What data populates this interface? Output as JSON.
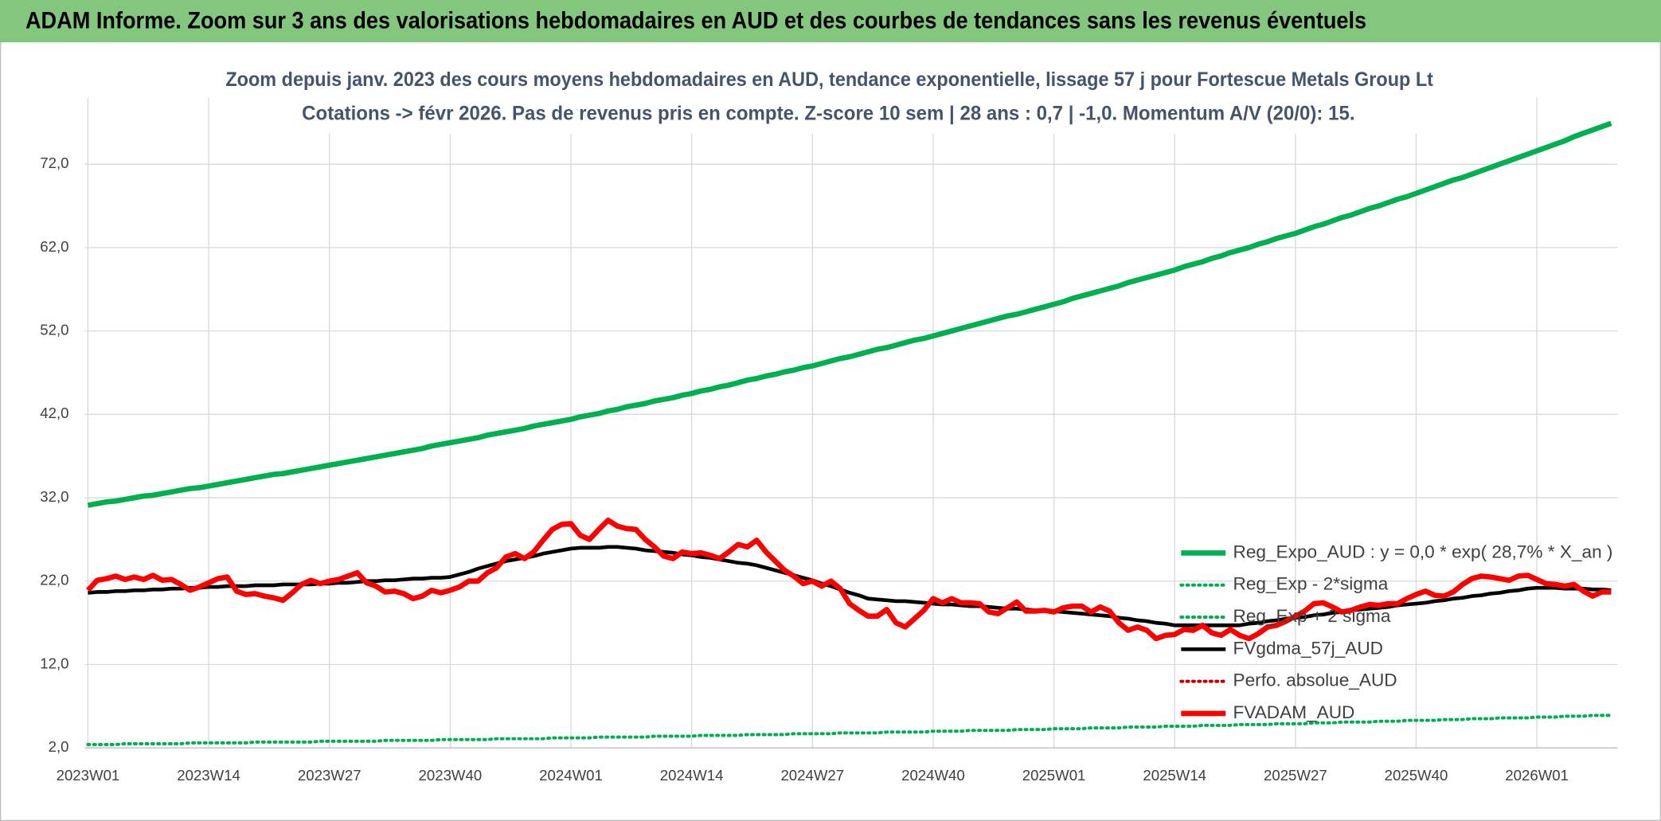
{
  "header": {
    "title": "ADAM Informe. Zoom sur 3 ans des valorisations hebdomadaires en AUD et des courbes de tendances sans les revenus éventuels"
  },
  "chart_data": {
    "type": "line",
    "title": "Zoom depuis janv. 2023 des cours moyens hebdomadaires en AUD, tendance exponentielle, lissage 57 j pour Fortescue Metals Group Lt",
    "subtitle": "Cotations -> févr 2026. Pas de revenus pris en compte. Z-score 10 sem | 28 ans : 0,7 | -1,0. Momentum A/V (20/0): 15.",
    "categories": [
      "2023W01",
      null,
      null,
      null,
      null,
      null,
      null,
      null,
      null,
      null,
      null,
      null,
      null,
      "2023W14",
      null,
      null,
      null,
      null,
      null,
      null,
      null,
      null,
      null,
      null,
      null,
      null,
      "2023W27",
      null,
      null,
      null,
      null,
      null,
      null,
      null,
      null,
      null,
      null,
      null,
      null,
      "2023W40",
      null,
      null,
      null,
      null,
      null,
      null,
      null,
      null,
      null,
      null,
      null,
      null,
      "2024W01",
      null,
      null,
      null,
      null,
      null,
      null,
      null,
      null,
      null,
      null,
      null,
      null,
      "2024W14",
      null,
      null,
      null,
      null,
      null,
      null,
      null,
      null,
      null,
      null,
      null,
      null,
      "2024W27",
      null,
      null,
      null,
      null,
      null,
      null,
      null,
      null,
      null,
      null,
      null,
      null,
      "2024W40",
      null,
      null,
      null,
      null,
      null,
      null,
      null,
      null,
      null,
      null,
      null,
      null,
      "2025W01",
      null,
      null,
      null,
      null,
      null,
      null,
      null,
      null,
      null,
      null,
      null,
      null,
      "2025W14",
      null,
      null,
      null,
      null,
      null,
      null,
      null,
      null,
      null,
      null,
      null,
      null,
      "2025W27",
      null,
      null,
      null,
      null,
      null,
      null,
      null,
      null,
      null,
      null,
      null,
      null,
      "2025W40",
      null,
      null,
      null,
      null,
      null,
      null,
      null,
      null,
      null,
      null,
      null,
      null,
      "2026W01",
      null,
      null,
      null,
      null,
      null,
      null,
      null,
      null
    ],
    "ylim": [
      2,
      80
    ],
    "yticks": [
      {
        "value": 2,
        "label": "2,0"
      },
      {
        "value": 12,
        "label": "12,0"
      },
      {
        "value": 22,
        "label": "22,0"
      },
      {
        "value": 32,
        "label": "32,0"
      },
      {
        "value": 42,
        "label": "42,0"
      },
      {
        "value": 52,
        "label": "52,0"
      },
      {
        "value": 62,
        "label": "62,0"
      },
      {
        "value": 72,
        "label": "72,0"
      }
    ],
    "grid": true,
    "legend": "lower right",
    "series": [
      {
        "name": "Reg_Expo_AUD : y = 0,0 * exp( 28,7% *  X_an )",
        "color": "#00b050",
        "style": "solid",
        "width": 5,
        "values": [
          31.1,
          31.3,
          31.5,
          31.6,
          31.8,
          32.0,
          32.2,
          32.3,
          32.5,
          32.7,
          32.9,
          33.1,
          33.2,
          33.4,
          33.6,
          33.8,
          34.0,
          34.2,
          34.4,
          34.6,
          34.8,
          34.9,
          35.1,
          35.3,
          35.5,
          35.7,
          35.9,
          36.1,
          36.3,
          36.5,
          36.7,
          36.9,
          37.1,
          37.3,
          37.5,
          37.7,
          37.9,
          38.2,
          38.4,
          38.6,
          38.8,
          39.0,
          39.2,
          39.5,
          39.7,
          39.9,
          40.1,
          40.3,
          40.6,
          40.8,
          41.0,
          41.2,
          41.4,
          41.7,
          41.9,
          42.1,
          42.4,
          42.6,
          42.9,
          43.1,
          43.3,
          43.6,
          43.8,
          44.0,
          44.3,
          44.5,
          44.8,
          45.0,
          45.3,
          45.5,
          45.8,
          46.1,
          46.3,
          46.6,
          46.8,
          47.1,
          47.3,
          47.6,
          47.8,
          48.1,
          48.4,
          48.7,
          48.9,
          49.2,
          49.5,
          49.8,
          50.0,
          50.3,
          50.6,
          50.9,
          51.1,
          51.4,
          51.7,
          52.0,
          52.3,
          52.6,
          52.9,
          53.2,
          53.5,
          53.8,
          54.0,
          54.3,
          54.6,
          54.9,
          55.2,
          55.5,
          55.9,
          56.2,
          56.5,
          56.8,
          57.1,
          57.4,
          57.8,
          58.1,
          58.4,
          58.7,
          59.0,
          59.3,
          59.7,
          60.0,
          60.3,
          60.7,
          61.0,
          61.4,
          61.7,
          62.0,
          62.4,
          62.7,
          63.1,
          63.4,
          63.7,
          64.1,
          64.5,
          64.8,
          65.2,
          65.6,
          65.9,
          66.3,
          66.7,
          67.0,
          67.4,
          67.8,
          68.1,
          68.5,
          68.9,
          69.3,
          69.7,
          70.1,
          70.4,
          70.8,
          71.2,
          71.6,
          72.0,
          72.4,
          72.8,
          73.2,
          73.6,
          74.0,
          74.4,
          74.8,
          75.3,
          75.7,
          76.1,
          76.5,
          76.9
        ]
      },
      {
        "name": "Reg_Exp - 2*sigma",
        "color": "#00b050",
        "style": "dotted",
        "width": 3,
        "values": [
          2.4,
          2.4,
          2.4,
          2.4,
          2.5,
          2.5,
          2.5,
          2.5,
          2.5,
          2.5,
          2.5,
          2.6,
          2.6,
          2.6,
          2.6,
          2.6,
          2.6,
          2.6,
          2.7,
          2.7,
          2.7,
          2.7,
          2.7,
          2.7,
          2.7,
          2.8,
          2.8,
          2.8,
          2.8,
          2.8,
          2.8,
          2.8,
          2.9,
          2.9,
          2.9,
          2.9,
          2.9,
          2.9,
          3.0,
          3.0,
          3.0,
          3.0,
          3.0,
          3.0,
          3.1,
          3.1,
          3.1,
          3.1,
          3.1,
          3.1,
          3.2,
          3.2,
          3.2,
          3.2,
          3.2,
          3.3,
          3.3,
          3.3,
          3.3,
          3.3,
          3.3,
          3.4,
          3.4,
          3.4,
          3.4,
          3.4,
          3.5,
          3.5,
          3.5,
          3.5,
          3.5,
          3.6,
          3.6,
          3.6,
          3.6,
          3.6,
          3.7,
          3.7,
          3.7,
          3.7,
          3.7,
          3.8,
          3.8,
          3.8,
          3.8,
          3.8,
          3.9,
          3.9,
          3.9,
          3.9,
          3.9,
          4.0,
          4.0,
          4.0,
          4.0,
          4.1,
          4.1,
          4.1,
          4.1,
          4.1,
          4.2,
          4.2,
          4.2,
          4.2,
          4.3,
          4.3,
          4.3,
          4.3,
          4.4,
          4.4,
          4.4,
          4.4,
          4.5,
          4.5,
          4.5,
          4.5,
          4.6,
          4.6,
          4.6,
          4.6,
          4.7,
          4.7,
          4.7,
          4.7,
          4.8,
          4.8,
          4.8,
          4.8,
          4.9,
          4.9,
          4.9,
          4.9,
          5.0,
          5.0,
          5.0,
          5.1,
          5.1,
          5.1,
          5.1,
          5.2,
          5.2,
          5.2,
          5.3,
          5.3,
          5.3,
          5.3,
          5.4,
          5.4,
          5.4,
          5.5,
          5.5,
          5.5,
          5.6,
          5.6,
          5.6,
          5.6,
          5.7,
          5.7,
          5.7,
          5.8,
          5.8,
          5.8,
          5.9,
          5.9,
          5.9
        ]
      },
      {
        "name": "Reg_Exp + 2 sigma",
        "color": "#00b050",
        "style": "dotted",
        "width": 3
      },
      {
        "name": "FVgdma_57j_AUD",
        "color": "#000000",
        "style": "solid",
        "width": 3.5,
        "values": [
          20.6,
          20.7,
          20.7,
          20.8,
          20.8,
          20.9,
          20.9,
          21.0,
          21.0,
          21.1,
          21.1,
          21.2,
          21.2,
          21.3,
          21.3,
          21.4,
          21.4,
          21.4,
          21.5,
          21.5,
          21.5,
          21.6,
          21.6,
          21.6,
          21.6,
          21.7,
          21.7,
          21.8,
          21.8,
          21.9,
          22.0,
          22.0,
          22.1,
          22.1,
          22.2,
          22.3,
          22.3,
          22.4,
          22.4,
          22.5,
          22.8,
          23.1,
          23.5,
          23.8,
          24.1,
          24.4,
          24.6,
          24.8,
          25.0,
          25.3,
          25.5,
          25.7,
          25.9,
          26.0,
          26.0,
          26.0,
          26.1,
          26.1,
          26.0,
          25.9,
          25.7,
          25.6,
          25.5,
          25.4,
          25.2,
          25.1,
          24.9,
          24.8,
          24.6,
          24.4,
          24.2,
          24.1,
          23.9,
          23.6,
          23.3,
          23.0,
          22.7,
          22.4,
          22.1,
          21.7,
          21.4,
          21.0,
          20.6,
          20.3,
          19.9,
          19.8,
          19.7,
          19.6,
          19.6,
          19.5,
          19.4,
          19.3,
          19.2,
          19.2,
          19.1,
          19.0,
          19.0,
          18.9,
          18.8,
          18.7,
          18.7,
          18.6,
          18.5,
          18.5,
          18.4,
          18.3,
          18.2,
          18.1,
          18.0,
          17.9,
          17.8,
          17.6,
          17.5,
          17.3,
          17.2,
          17.0,
          16.9,
          16.7,
          16.7,
          16.7,
          16.7,
          16.7,
          16.7,
          16.7,
          16.7,
          16.9,
          17.0,
          17.2,
          17.3,
          17.5,
          17.6,
          17.7,
          17.9,
          18.0,
          18.2,
          18.3,
          18.5,
          18.6,
          18.7,
          18.8,
          18.9,
          19.1,
          19.2,
          19.3,
          19.4,
          19.6,
          19.7,
          19.9,
          20.0,
          20.2,
          20.3,
          20.5,
          20.6,
          20.8,
          20.9,
          21.1,
          21.2,
          21.2,
          21.2,
          21.1,
          21.1,
          21.1,
          21.0,
          21.0,
          20.9
        ]
      },
      {
        "name": "Perfo. absolue_AUD",
        "color": "#c00000",
        "style": "dotted",
        "width": 3
      },
      {
        "name": "FVADAM_AUD",
        "color": "#ff0000",
        "style": "solid",
        "width": 5,
        "values": [
          20.9,
          22.1,
          22.3,
          22.6,
          22.2,
          22.5,
          22.2,
          22.7,
          22.1,
          22.2,
          21.6,
          20.9,
          21.3,
          21.8,
          22.3,
          22.5,
          20.8,
          20.4,
          20.5,
          20.2,
          20.0,
          19.7,
          20.6,
          21.6,
          22.1,
          21.7,
          22.0,
          22.2,
          22.6,
          23.0,
          21.8,
          21.4,
          20.7,
          20.8,
          20.5,
          19.9,
          20.2,
          20.9,
          20.6,
          20.9,
          21.3,
          22.0,
          22.0,
          23.0,
          23.6,
          24.9,
          25.3,
          24.7,
          25.5,
          26.9,
          28.2,
          28.8,
          28.9,
          27.5,
          27.0,
          28.2,
          29.3,
          28.6,
          28.3,
          28.2,
          27.0,
          26.1,
          25.0,
          24.7,
          25.5,
          25.3,
          25.4,
          25.1,
          24.7,
          25.5,
          26.4,
          26.1,
          26.9,
          25.5,
          24.4,
          23.3,
          22.6,
          21.7,
          22.0,
          21.4,
          22.0,
          21.1,
          19.3,
          18.5,
          17.8,
          17.8,
          18.6,
          17.0,
          16.5,
          17.5,
          18.5,
          19.9,
          19.4,
          19.9,
          19.4,
          19.4,
          19.3,
          18.3,
          18.1,
          18.8,
          19.5,
          18.4,
          18.4,
          18.5,
          18.3,
          18.8,
          19.0,
          19.0,
          18.3,
          18.9,
          18.4,
          17.0,
          16.1,
          16.5,
          16.1,
          15.1,
          15.5,
          15.6,
          16.2,
          16.1,
          16.7,
          15.8,
          15.5,
          16.2,
          15.5,
          15.1,
          15.7,
          16.5,
          16.7,
          17.2,
          17.8,
          18.4,
          19.3,
          19.4,
          18.9,
          18.3,
          18.5,
          18.9,
          19.2,
          19.1,
          19.3,
          19.3,
          19.9,
          20.4,
          20.8,
          20.3,
          20.2,
          20.7,
          21.6,
          22.3,
          22.6,
          22.5,
          22.3,
          22.1,
          22.6,
          22.7,
          22.2,
          21.7,
          21.6,
          21.4,
          21.6,
          20.8,
          20.2,
          20.7,
          20.7
        ]
      }
    ]
  }
}
